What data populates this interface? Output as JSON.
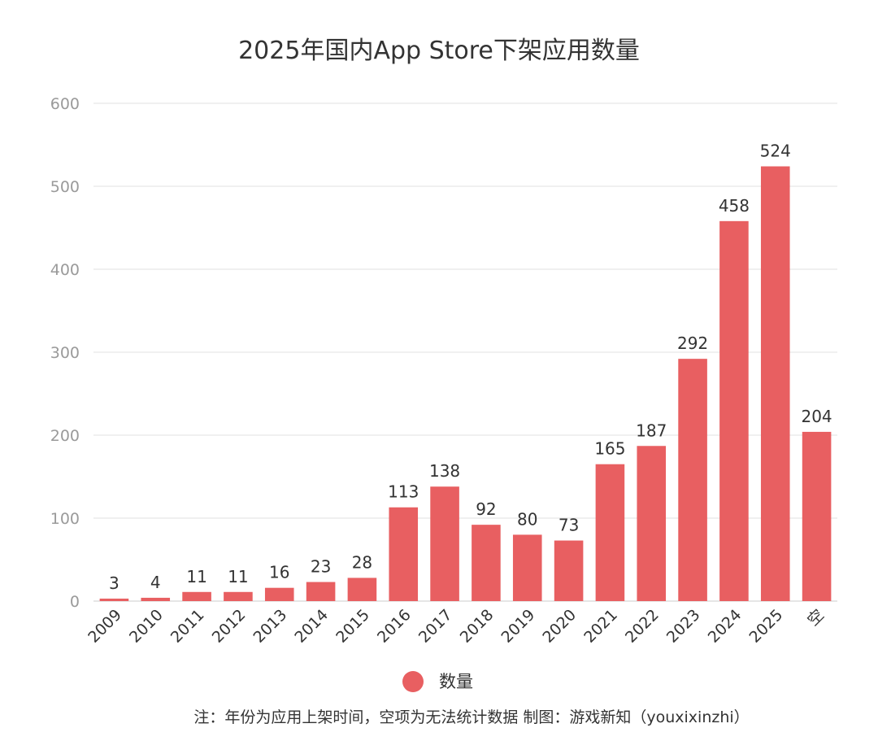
{
  "chart_data": {
    "type": "bar",
    "title": "2025年国内App Store下架应用数量",
    "categories": [
      "2009",
      "2010",
      "2011",
      "2012",
      "2013",
      "2014",
      "2015",
      "2016",
      "2017",
      "2018",
      "2019",
      "2020",
      "2021",
      "2022",
      "2023",
      "2024",
      "2025",
      "空"
    ],
    "series": [
      {
        "name": "数量",
        "values": [
          3,
          4,
          11,
          11,
          16,
          23,
          28,
          113,
          138,
          92,
          80,
          73,
          165,
          187,
          292,
          458,
          524,
          204
        ]
      }
    ],
    "ylim": [
      0,
      600
    ],
    "yticks": [
      0,
      100,
      200,
      300,
      400,
      500,
      600
    ],
    "xlabel": "",
    "ylabel": "",
    "grid": true,
    "legend": "bottom-center",
    "colors": {
      "bar": "#e85f61",
      "grid": "#e0e0e0",
      "axis": "#cccccc"
    }
  },
  "footnote": "注：年份为应用上架时间，空项为无法统计数据 制图：游戏新知（youxixinzhi）"
}
